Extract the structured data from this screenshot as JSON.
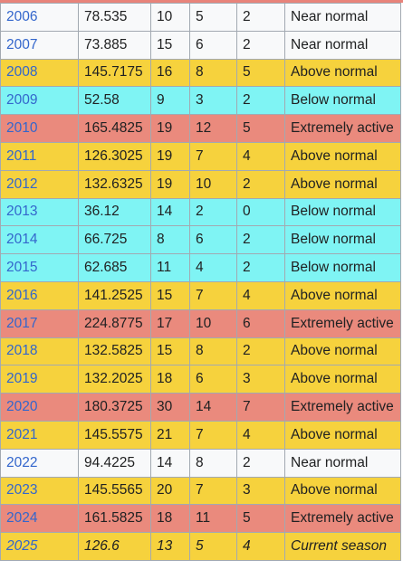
{
  "table": {
    "rows": [
      {
        "year": "2006",
        "ace": "78.535",
        "storms": "10",
        "hurricanes": "5",
        "major": "2",
        "classification": "Near normal",
        "class_key": "near"
      },
      {
        "year": "2007",
        "ace": "73.885",
        "storms": "15",
        "hurricanes": "6",
        "major": "2",
        "classification": "Near normal",
        "class_key": "near"
      },
      {
        "year": "2008",
        "ace": "145.7175",
        "storms": "16",
        "hurricanes": "8",
        "major": "5",
        "classification": "Above normal",
        "class_key": "above"
      },
      {
        "year": "2009",
        "ace": "52.58",
        "storms": "9",
        "hurricanes": "3",
        "major": "2",
        "classification": "Below normal",
        "class_key": "below"
      },
      {
        "year": "2010",
        "ace": "165.4825",
        "storms": "19",
        "hurricanes": "12",
        "major": "5",
        "classification": "Extremely active",
        "class_key": "extreme"
      },
      {
        "year": "2011",
        "ace": "126.3025",
        "storms": "19",
        "hurricanes": "7",
        "major": "4",
        "classification": "Above normal",
        "class_key": "above"
      },
      {
        "year": "2012",
        "ace": "132.6325",
        "storms": "19",
        "hurricanes": "10",
        "major": "2",
        "classification": "Above normal",
        "class_key": "above"
      },
      {
        "year": "2013",
        "ace": "36.12",
        "storms": "14",
        "hurricanes": "2",
        "major": "0",
        "classification": "Below normal",
        "class_key": "below"
      },
      {
        "year": "2014",
        "ace": "66.725",
        "storms": "8",
        "hurricanes": "6",
        "major": "2",
        "classification": "Below normal",
        "class_key": "below"
      },
      {
        "year": "2015",
        "ace": "62.685",
        "storms": "11",
        "hurricanes": "4",
        "major": "2",
        "classification": "Below normal",
        "class_key": "below"
      },
      {
        "year": "2016",
        "ace": "141.2525",
        "storms": "15",
        "hurricanes": "7",
        "major": "4",
        "classification": "Above normal",
        "class_key": "above"
      },
      {
        "year": "2017",
        "ace": "224.8775",
        "storms": "17",
        "hurricanes": "10",
        "major": "6",
        "classification": "Extremely active",
        "class_key": "extreme"
      },
      {
        "year": "2018",
        "ace": "132.5825",
        "storms": "15",
        "hurricanes": "8",
        "major": "2",
        "classification": "Above normal",
        "class_key": "above"
      },
      {
        "year": "2019",
        "ace": "132.2025",
        "storms": "18",
        "hurricanes": "6",
        "major": "3",
        "classification": "Above normal",
        "class_key": "above"
      },
      {
        "year": "2020",
        "ace": "180.3725",
        "storms": "30",
        "hurricanes": "14",
        "major": "7",
        "classification": "Extremely active",
        "class_key": "extreme"
      },
      {
        "year": "2021",
        "ace": "145.5575",
        "storms": "21",
        "hurricanes": "7",
        "major": "4",
        "classification": "Above normal",
        "class_key": "above"
      },
      {
        "year": "2022",
        "ace": "94.4225",
        "storms": "14",
        "hurricanes": "8",
        "major": "2",
        "classification": "Near normal",
        "class_key": "near"
      },
      {
        "year": "2023",
        "ace": "145.5565",
        "storms": "20",
        "hurricanes": "7",
        "major": "3",
        "classification": "Above normal",
        "class_key": "above"
      },
      {
        "year": "2024",
        "ace": "161.5825",
        "storms": "18",
        "hurricanes": "11",
        "major": "5",
        "classification": "Extremely active",
        "class_key": "extreme"
      },
      {
        "year": "2025",
        "ace": "126.6",
        "storms": "13",
        "hurricanes": "5",
        "major": "4",
        "classification": "Current season",
        "class_key": "current"
      }
    ]
  },
  "colors": {
    "near": "#f8f9fa",
    "above": "#f6d23d",
    "below": "#7ff4f4",
    "extreme": "#ea8a7d",
    "link": "#3366cc",
    "border": "#a2a9b1"
  }
}
